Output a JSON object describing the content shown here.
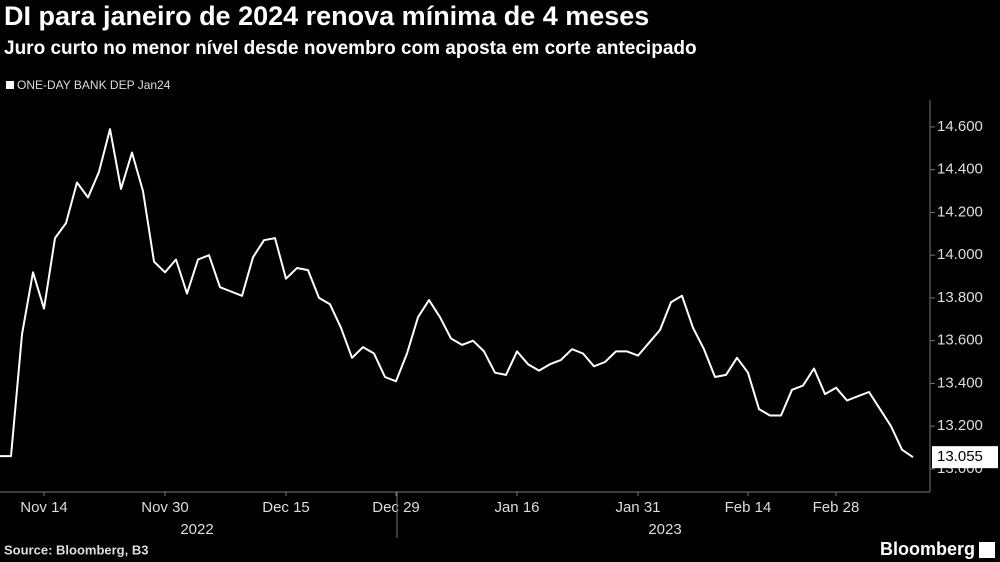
{
  "chart_data": {
    "type": "line",
    "title": "DI para janeiro de 2024 renova mínima de 4 meses",
    "subtitle": "Juro curto no menor nível desde novembro com aposta em corte antecipado",
    "source": "Source: Bloomberg, B3",
    "brand": "Bloomberg",
    "categories": [
      null,
      null,
      null,
      null,
      "Nov 14",
      null,
      null,
      null,
      null,
      null,
      null,
      null,
      null,
      null,
      null,
      "Nov 30",
      null,
      null,
      null,
      null,
      null,
      null,
      null,
      null,
      null,
      null,
      "Dec 15",
      null,
      null,
      null,
      null,
      null,
      null,
      null,
      null,
      null,
      "Dec 29",
      null,
      null,
      null,
      null,
      null,
      null,
      null,
      null,
      null,
      null,
      "Jan 16",
      null,
      null,
      null,
      null,
      null,
      null,
      null,
      null,
      null,
      null,
      "Jan 31",
      null,
      null,
      null,
      null,
      null,
      null,
      null,
      null,
      null,
      "Feb 14",
      null,
      null,
      null,
      null,
      null,
      null,
      null,
      "Feb 28",
      null,
      null,
      null,
      null,
      null,
      null,
      null
    ],
    "years": [
      "2022",
      "2023"
    ],
    "series": [
      {
        "name": "ONE-DAY BANK DEP  Jan24",
        "color": "#ffffff",
        "values": [
          13.06,
          13.06,
          13.63,
          13.92,
          13.75,
          14.08,
          14.15,
          14.34,
          14.27,
          14.39,
          14.59,
          14.31,
          14.48,
          14.3,
          13.97,
          13.92,
          13.98,
          13.82,
          13.98,
          14.0,
          13.85,
          13.83,
          13.81,
          13.99,
          14.07,
          14.08,
          13.89,
          13.94,
          13.93,
          13.8,
          13.77,
          13.66,
          13.52,
          13.57,
          13.54,
          13.43,
          13.41,
          13.54,
          13.71,
          13.79,
          13.71,
          13.61,
          13.58,
          13.6,
          13.55,
          13.45,
          13.44,
          13.55,
          13.49,
          13.46,
          13.49,
          13.51,
          13.56,
          13.54,
          13.48,
          13.5,
          13.55,
          13.55,
          13.53,
          13.59,
          13.65,
          13.78,
          13.81,
          13.66,
          13.56,
          13.43,
          13.44,
          13.52,
          13.45,
          13.28,
          13.25,
          13.25,
          13.37,
          13.39,
          13.47,
          13.35,
          13.38,
          13.32,
          13.34,
          13.36,
          13.28,
          13.2,
          13.09,
          13.055
        ]
      }
    ],
    "last_value": {
      "value": 13.055,
      "label": "13.055"
    },
    "ylim": [
      12.892,
      14.726
    ],
    "yticks": [
      {
        "value": 13.0,
        "label": "13.000"
      },
      {
        "value": 13.2,
        "label": "13.200"
      },
      {
        "value": 13.4,
        "label": "13.400"
      },
      {
        "value": 13.6,
        "label": "13.600"
      },
      {
        "value": 13.8,
        "label": "13.800"
      },
      {
        "value": 14.0,
        "label": "14.000"
      },
      {
        "value": 14.2,
        "label": "14.200"
      },
      {
        "value": 14.4,
        "label": "14.400"
      },
      {
        "value": 14.6,
        "label": "14.600"
      }
    ],
    "grid": false
  }
}
